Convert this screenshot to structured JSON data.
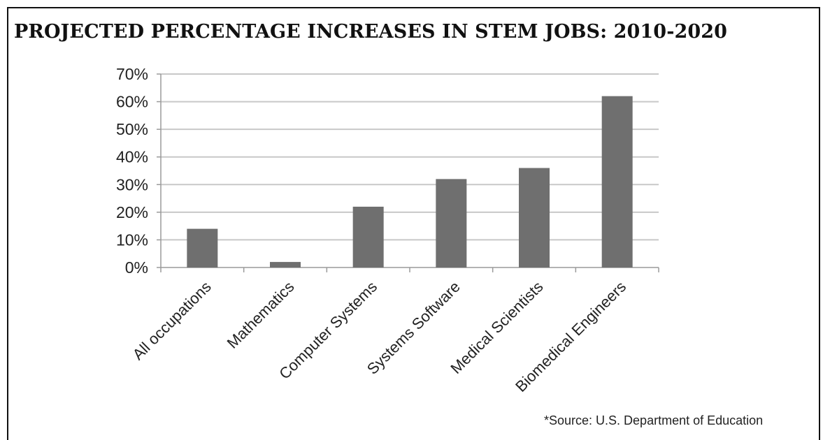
{
  "chart_data": {
    "type": "bar",
    "title": "PROJECTED PERCENTAGE INCREASES IN STEM JOBS: 2010-2020",
    "categories": [
      "All occupations",
      "Mathematics",
      "Computer Systems",
      "Systems Software",
      "Medical Scientists",
      "Biomedical Engineers"
    ],
    "values": [
      14,
      2,
      22,
      32,
      36,
      62
    ],
    "ylim": [
      0,
      70
    ],
    "yticks": [
      "0%",
      "10%",
      "20%",
      "30%",
      "40%",
      "50%",
      "60%",
      "70%"
    ],
    "grid": true,
    "legend": "none",
    "bar_color": "#6f6f6f",
    "source_note": "*Source:  U.S. Department of Education"
  }
}
